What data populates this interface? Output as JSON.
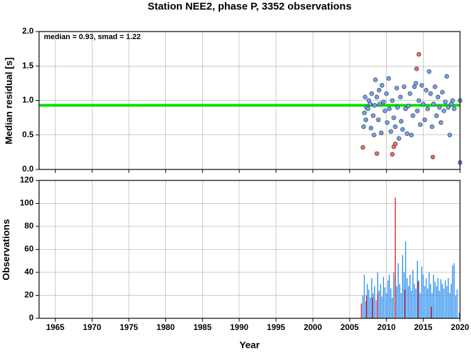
{
  "chart_data": [
    {
      "type": "scatter",
      "title": "Station NEE2, phase P, 3352 observations",
      "ylabel": "Median residual [s]",
      "annotation": "median = 0.93, smad = 1.22",
      "hline": {
        "value": 0.93,
        "color": "#00e000"
      },
      "xlim": [
        1962.8,
        2020
      ],
      "ylim": [
        0,
        2
      ],
      "yticks": [
        {
          "value": 0,
          "label": "0.0"
        },
        {
          "value": 0.5,
          "label": "0.5"
        },
        {
          "value": 1,
          "label": "1.0"
        },
        {
          "value": 1.5,
          "label": "1.5"
        },
        {
          "value": 2,
          "label": "2.0"
        }
      ],
      "grid": true,
      "series": [
        {
          "color": "#6f9ff0",
          "x": [
            2006.9,
            2007.0,
            2007.1,
            2007.2,
            2007.3,
            2007.5,
            2007.6,
            2007.8,
            2007.9,
            2008.0,
            2008.2,
            2008.3,
            2008.4,
            2008.5,
            2008.7,
            2008.9,
            2009.0,
            2009.1,
            2009.3,
            2009.4,
            2009.6,
            2009.8,
            2010.0,
            2010.1,
            2010.3,
            2010.4,
            2010.6,
            2010.8,
            2011.0,
            2011.2,
            2011.4,
            2011.5,
            2011.7,
            2011.9,
            2012.0,
            2012.2,
            2012.4,
            2012.6,
            2012.8,
            2013.0,
            2013.2,
            2013.4,
            2013.6,
            2013.8,
            2014.0,
            2014.2,
            2014.4,
            2014.6,
            2014.8,
            2015.0,
            2015.2,
            2015.4,
            2015.6,
            2015.8,
            2016.0,
            2016.2,
            2016.4,
            2016.6,
            2016.8,
            2017.0,
            2017.2,
            2017.4,
            2017.6,
            2017.8,
            2018.0,
            2018.2,
            2018.4,
            2018.6,
            2018.8,
            2019.0,
            2019.2,
            2020.0,
            2020.0
          ],
          "values": [
            0.62,
            0.82,
            1.05,
            0.72,
            0.9,
            0.88,
            1.0,
            0.95,
            0.6,
            1.1,
            0.78,
            0.5,
            0.93,
            1.3,
            1.05,
            0.72,
            1.15,
            0.95,
            0.53,
            1.22,
            0.98,
            0.85,
            1.1,
            0.68,
            1.32,
            0.88,
            0.55,
            1.0,
            0.75,
            0.62,
            1.18,
            0.9,
            0.45,
            1.05,
            0.7,
            0.58,
            1.2,
            0.88,
            0.52,
            0.92,
            1.1,
            0.5,
            0.78,
            1.2,
            1.25,
            0.85,
            1.0,
            0.65,
            1.22,
            0.95,
            0.72,
            1.15,
            0.88,
            1.42,
            1.1,
            0.62,
            0.95,
            1.2,
            0.78,
            1.05,
            0.9,
            0.68,
            1.12,
            0.85,
            0.98,
            1.35,
            0.9,
            0.5,
            0.95,
            1.0,
            0.88,
            0.1,
            1.0
          ]
        },
        {
          "color": "#f06a60",
          "x": [
            2006.8,
            2008.7,
            2010.8,
            2011.0,
            2011.2,
            2014.1,
            2014.4,
            2016.3
          ],
          "values": [
            0.32,
            0.23,
            0.22,
            0.33,
            0.37,
            1.46,
            1.67,
            0.18
          ]
        }
      ]
    },
    {
      "type": "bar",
      "xlabel": "Year",
      "ylabel": "Observations",
      "xlim": [
        1962.8,
        2020
      ],
      "ylim": [
        0,
        120
      ],
      "xticks": [
        1965,
        1970,
        1975,
        1980,
        1985,
        1990,
        1995,
        2000,
        2005,
        2010,
        2015,
        2020
      ],
      "yticks": [
        0,
        20,
        40,
        60,
        80,
        100,
        120
      ],
      "grid": true,
      "series": [
        {
          "color": "#2b8ff0",
          "x": [
            2006.8,
            2007,
            2007.2,
            2007.4,
            2007.6,
            2007.8,
            2008,
            2008.2,
            2008.4,
            2008.6,
            2008.8,
            2009,
            2009.2,
            2009.4,
            2009.6,
            2009.8,
            2010,
            2010.2,
            2010.4,
            2010.6,
            2010.8,
            2011,
            2011.2,
            2011.4,
            2011.6,
            2011.8,
            2012,
            2012.2,
            2012.4,
            2012.6,
            2012.8,
            2013,
            2013.2,
            2013.4,
            2013.6,
            2013.8,
            2014,
            2014.2,
            2014.4,
            2014.6,
            2014.8,
            2015,
            2015.2,
            2015.4,
            2015.6,
            2015.8,
            2016,
            2016.2,
            2016.4,
            2016.6,
            2016.8,
            2017,
            2017.2,
            2017.4,
            2017.6,
            2017.8,
            2018,
            2018.2,
            2018.4,
            2018.6,
            2018.8,
            2019,
            2019.2,
            2019.4,
            2019.6,
            2019.9
          ],
          "values": [
            20,
            38,
            15,
            30,
            25,
            18,
            35,
            22,
            28,
            16,
            40,
            24,
            30,
            19,
            36,
            27,
            22,
            33,
            38,
            26,
            18,
            40,
            35,
            28,
            48,
            30,
            22,
            55,
            40,
            67,
            35,
            28,
            38,
            24,
            42,
            30,
            26,
            50,
            33,
            22,
            45,
            38,
            28,
            35,
            26,
            40,
            30,
            22,
            38,
            32,
            28,
            35,
            24,
            34,
            30,
            26,
            33,
            28,
            35,
            22,
            30,
            46,
            48,
            20,
            25,
            5
          ]
        },
        {
          "color": "#e02020",
          "x": [
            2006.6,
            2007.3,
            2008.1,
            2008.8,
            2011.2,
            2012.5,
            2014.3,
            2016.1
          ],
          "values": [
            13,
            20,
            18,
            22,
            105,
            25,
            32,
            10
          ]
        }
      ]
    }
  ]
}
